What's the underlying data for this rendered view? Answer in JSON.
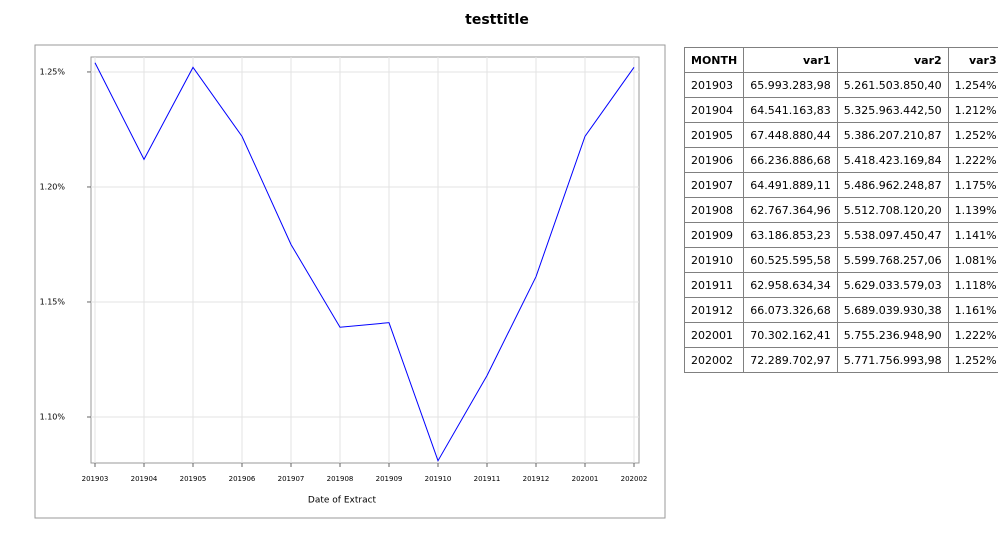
{
  "chart_data": {
    "type": "line",
    "title": "testtitle",
    "x_label": "Date of Extract",
    "categories": [
      "201903",
      "201904",
      "201905",
      "201906",
      "201907",
      "201908",
      "201909",
      "201910",
      "201911",
      "201912",
      "202001",
      "202002"
    ],
    "series": [
      {
        "name": "var3",
        "color": "#0000ff",
        "values": [
          1.254,
          1.212,
          1.252,
          1.222,
          1.175,
          1.139,
          1.141,
          1.081,
          1.118,
          1.161,
          1.222,
          1.252
        ]
      }
    ],
    "ylim": [
      1.08,
      1.2565
    ],
    "yticks": [
      {
        "value": 1.1,
        "label": "1.10%"
      },
      {
        "value": 1.15,
        "label": "1.15%"
      },
      {
        "value": 1.2,
        "label": "1.20%"
      },
      {
        "value": 1.25,
        "label": "1.25%"
      }
    ],
    "grid": true
  },
  "table": {
    "columns": [
      "MONTH",
      "var1",
      "var2",
      "var3"
    ],
    "rows": [
      [
        "201903",
        "65.993.283,98",
        "5.261.503.850,40",
        "1.254%"
      ],
      [
        "201904",
        "64.541.163,83",
        "5.325.963.442,50",
        "1.212%"
      ],
      [
        "201905",
        "67.448.880,44",
        "5.386.207.210,87",
        "1.252%"
      ],
      [
        "201906",
        "66.236.886,68",
        "5.418.423.169,84",
        "1.222%"
      ],
      [
        "201907",
        "64.491.889,11",
        "5.486.962.248,87",
        "1.175%"
      ],
      [
        "201908",
        "62.767.364,96",
        "5.512.708.120,20",
        "1.139%"
      ],
      [
        "201909",
        "63.186.853,23",
        "5.538.097.450,47",
        "1.141%"
      ],
      [
        "201910",
        "60.525.595,58",
        "5.599.768.257,06",
        "1.081%"
      ],
      [
        "201911",
        "62.958.634,34",
        "5.629.033.579,03",
        "1.118%"
      ],
      [
        "201912",
        "66.073.326,68",
        "5.689.039.930,38",
        "1.161%"
      ],
      [
        "202001",
        "70.302.162,41",
        "5.755.236.948,90",
        "1.222%"
      ],
      [
        "202002",
        "72.289.702,97",
        "5.771.756.993,98",
        "1.252%"
      ]
    ]
  }
}
